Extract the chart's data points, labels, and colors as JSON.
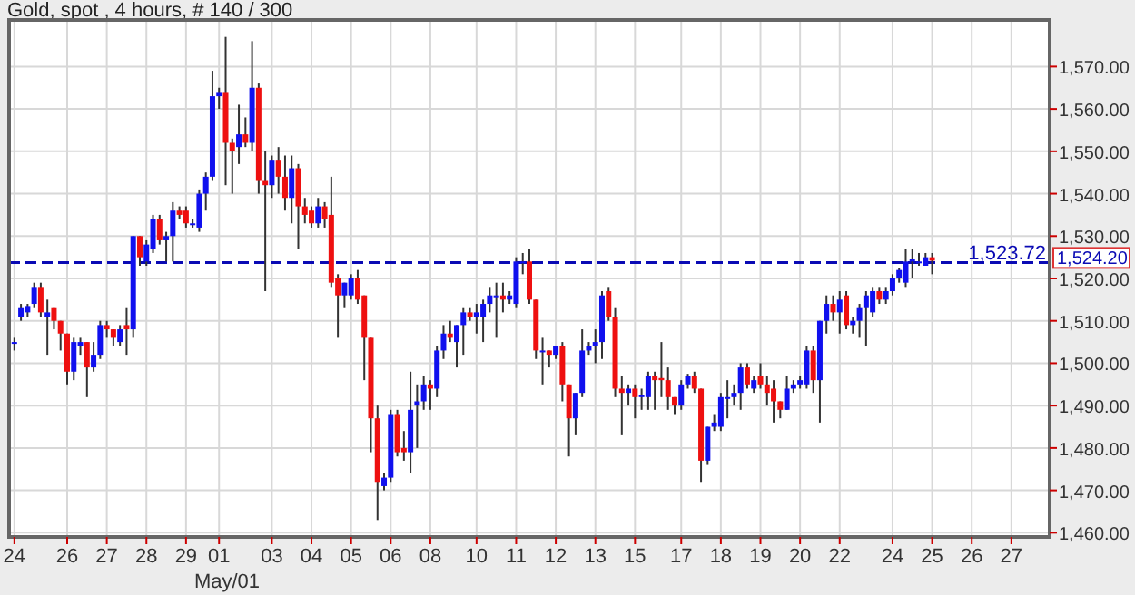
{
  "chart_data": {
    "type": "candlestick",
    "title": "Gold, spot , 4 hours, # 140 / 300",
    "categories": [
      "24",
      null,
      null,
      null,
      null,
      null,
      null,
      null,
      "26",
      null,
      null,
      null,
      null,
      null,
      "27",
      null,
      null,
      null,
      null,
      null,
      "28",
      null,
      null,
      null,
      null,
      null,
      "29",
      null,
      null,
      null,
      null,
      "01",
      null,
      null,
      null,
      null,
      null,
      null,
      null,
      "03",
      null,
      null,
      null,
      null,
      null,
      "04",
      null,
      null,
      null,
      null,
      null,
      "05",
      null,
      null,
      null,
      null,
      null,
      "06",
      null,
      null,
      null,
      null,
      null,
      "08",
      null,
      null,
      null,
      null,
      null,
      null,
      "10",
      null,
      null,
      null,
      null,
      null,
      "11",
      null,
      null,
      null,
      null,
      null,
      "12",
      null,
      null,
      null,
      null,
      null,
      "13",
      null,
      null,
      null,
      null,
      null,
      "15",
      null,
      null,
      null,
      null,
      null,
      null,
      "17",
      null,
      null,
      null,
      null,
      null,
      "18",
      null,
      null,
      null,
      null,
      null,
      "19",
      null,
      null,
      null,
      null,
      null,
      "20",
      null,
      null,
      null,
      null,
      null,
      "22",
      null,
      null,
      null,
      null,
      null,
      null,
      null,
      "24",
      null,
      null,
      null,
      null,
      null,
      "25",
      null,
      null,
      null,
      null,
      null,
      "26",
      null,
      null,
      null,
      null,
      null,
      "27",
      null,
      null,
      null,
      null,
      null
    ],
    "ohlc": [
      [
        1505,
        1506,
        1503,
        1505
      ],
      [
        1511,
        1514,
        1510,
        1513
      ],
      [
        1512,
        1514,
        1511,
        1513.5
      ],
      [
        1514,
        1519,
        1513,
        1518
      ],
      [
        1518,
        1519,
        1511,
        1512
      ],
      [
        1511,
        1515,
        1502,
        1512
      ],
      [
        1513,
        1513,
        1508,
        1510
      ],
      [
        1510,
        1510,
        1503,
        1507
      ],
      [
        1507,
        1507,
        1495,
        1498
      ],
      [
        1498,
        1506,
        1496,
        1505
      ],
      [
        1504,
        1506,
        1502,
        1505
      ],
      [
        1505,
        1505,
        1492,
        1499
      ],
      [
        1499,
        1505,
        1498,
        1502
      ],
      [
        1502,
        1510,
        1501,
        1509
      ],
      [
        1509,
        1510,
        1506,
        1508
      ],
      [
        1508,
        1508,
        1504,
        1506
      ],
      [
        1505,
        1509,
        1504,
        1508
      ],
      [
        1509,
        1513,
        1502,
        1508
      ],
      [
        1508,
        1530,
        1506,
        1530
      ],
      [
        1530,
        1530,
        1523,
        1525
      ],
      [
        1524,
        1529,
        1523,
        1528
      ],
      [
        1527,
        1535,
        1526,
        1534
      ],
      [
        1534,
        1535,
        1528,
        1529
      ],
      [
        1529,
        1531,
        1524,
        1530
      ],
      [
        1530,
        1538,
        1524,
        1536
      ],
      [
        1536,
        1537,
        1534,
        1535
      ],
      [
        1536,
        1537,
        1532,
        1533
      ],
      [
        1533,
        1534,
        1532,
        1533
      ],
      [
        1532,
        1541,
        1531,
        1540
      ],
      [
        1540,
        1545,
        1536,
        1544
      ],
      [
        1544,
        1569,
        1543,
        1563
      ],
      [
        1563,
        1565,
        1560,
        1564
      ],
      [
        1564,
        1577,
        1542,
        1552
      ],
      [
        1552,
        1553,
        1540,
        1550
      ],
      [
        1551,
        1561,
        1547,
        1554
      ],
      [
        1554,
        1558,
        1551,
        1552
      ],
      [
        1552,
        1576,
        1550,
        1565
      ],
      [
        1565,
        1566,
        1540,
        1543
      ],
      [
        1543,
        1550,
        1517,
        1542
      ],
      [
        1542,
        1549,
        1539,
        1548
      ],
      [
        1548,
        1551,
        1540,
        1544
      ],
      [
        1544,
        1549,
        1536,
        1539
      ],
      [
        1539,
        1549,
        1533,
        1546
      ],
      [
        1546,
        1547,
        1527,
        1537
      ],
      [
        1537,
        1539,
        1533,
        1535
      ],
      [
        1536,
        1537,
        1532,
        1533
      ],
      [
        1533,
        1539,
        1532,
        1537
      ],
      [
        1537,
        1538,
        1532,
        1534
      ],
      [
        1535,
        1544,
        1518,
        1519
      ],
      [
        1520,
        1521,
        1506,
        1516
      ],
      [
        1516,
        1519,
        1513,
        1519
      ],
      [
        1516,
        1521,
        1515,
        1520
      ],
      [
        1520,
        1522,
        1514,
        1515
      ],
      [
        1516,
        1516,
        1496,
        1506
      ],
      [
        1506,
        1506,
        1479,
        1487
      ],
      [
        1487,
        1490,
        1463,
        1472
      ],
      [
        1471,
        1474,
        1470,
        1473
      ],
      [
        1473,
        1489,
        1472,
        1488
      ],
      [
        1488,
        1489,
        1478,
        1479
      ],
      [
        1480,
        1484,
        1477,
        1479
      ],
      [
        1479,
        1498,
        1474,
        1489
      ],
      [
        1490,
        1495,
        1480,
        1491
      ],
      [
        1491,
        1497,
        1489,
        1495
      ],
      [
        1495,
        1496,
        1489,
        1494
      ],
      [
        1494,
        1504,
        1492,
        1503
      ],
      [
        1503,
        1509,
        1501,
        1507
      ],
      [
        1507,
        1510,
        1505,
        1506
      ],
      [
        1505,
        1509,
        1499,
        1509
      ],
      [
        1509,
        1513,
        1502,
        1512
      ],
      [
        1512,
        1513,
        1510,
        1511
      ],
      [
        1511,
        1514,
        1507,
        1512
      ],
      [
        1511,
        1515,
        1505,
        1514
      ],
      [
        1514,
        1518,
        1512,
        1516
      ],
      [
        1516,
        1519,
        1506,
        1516
      ],
      [
        1516,
        1519,
        1512,
        1515
      ],
      [
        1515,
        1517,
        1514,
        1516
      ],
      [
        1514,
        1525,
        1513,
        1524
      ],
      [
        1524,
        1526,
        1521,
        1524
      ],
      [
        1524,
        1527,
        1514,
        1515
      ],
      [
        1515,
        1515,
        1501,
        1503
      ],
      [
        1503,
        1506,
        1495,
        1503
      ],
      [
        1503,
        1503,
        1499,
        1502
      ],
      [
        1502,
        1504,
        1501,
        1504
      ],
      [
        1504,
        1505,
        1491,
        1495
      ],
      [
        1495,
        1495,
        1478,
        1487
      ],
      [
        1487,
        1493,
        1483,
        1493
      ],
      [
        1493,
        1508,
        1492,
        1503
      ],
      [
        1503,
        1505,
        1502,
        1504
      ],
      [
        1504,
        1508,
        1500,
        1505
      ],
      [
        1505,
        1517,
        1501,
        1516
      ],
      [
        1517,
        1518,
        1510,
        1511
      ],
      [
        1511,
        1513,
        1492,
        1494
      ],
      [
        1494,
        1497,
        1483,
        1493
      ],
      [
        1493,
        1495,
        1490,
        1494
      ],
      [
        1494,
        1495,
        1487,
        1492
      ],
      [
        1492,
        1494,
        1489,
        1492.5
      ],
      [
        1492,
        1498,
        1489,
        1497
      ],
      [
        1497,
        1498,
        1489,
        1496
      ],
      [
        1496.5,
        1505,
        1492,
        1496
      ],
      [
        1496,
        1499,
        1489,
        1492
      ],
      [
        1492,
        1492,
        1488,
        1490
      ],
      [
        1490,
        1496,
        1489,
        1495
      ],
      [
        1495,
        1497.5,
        1494,
        1497
      ],
      [
        1497,
        1498,
        1493,
        1494
      ],
      [
        1494,
        1494,
        1472,
        1477
      ],
      [
        1477,
        1485,
        1476,
        1485
      ],
      [
        1485,
        1488,
        1484,
        1486
      ],
      [
        1485,
        1493,
        1484,
        1492
      ],
      [
        1492,
        1496,
        1487,
        1492
      ],
      [
        1492,
        1495,
        1490,
        1493
      ],
      [
        1493,
        1500,
        1489,
        1499
      ],
      [
        1499,
        1500,
        1494,
        1495
      ],
      [
        1494,
        1497,
        1493,
        1496
      ],
      [
        1497,
        1500,
        1494,
        1495
      ],
      [
        1495,
        1497,
        1490,
        1493
      ],
      [
        1494,
        1496,
        1486,
        1491
      ],
      [
        1491,
        1491,
        1487,
        1489
      ],
      [
        1489,
        1497,
        1489,
        1494
      ],
      [
        1494,
        1496,
        1493,
        1495
      ],
      [
        1495,
        1497,
        1494,
        1496
      ],
      [
        1495,
        1504,
        1494,
        1503
      ],
      [
        1503,
        1504,
        1493,
        1496
      ],
      [
        1496,
        1510,
        1486,
        1510
      ],
      [
        1510,
        1516,
        1507,
        1514
      ],
      [
        1514,
        1516,
        1510,
        1512
      ],
      [
        1512,
        1517,
        1507,
        1515
      ],
      [
        1516,
        1517,
        1508,
        1509
      ],
      [
        1509,
        1511,
        1507,
        1510
      ],
      [
        1510,
        1514,
        1506,
        1513
      ],
      [
        1513,
        1517,
        1504,
        1516
      ],
      [
        1512,
        1518,
        1511,
        1517
      ],
      [
        1517,
        1518,
        1514,
        1515
      ],
      [
        1515,
        1518,
        1514,
        1517
      ],
      [
        1517,
        1521,
        1516,
        1520
      ],
      [
        1520,
        1522.5,
        1519,
        1522
      ],
      [
        1519,
        1527,
        1518,
        1524
      ],
      [
        1524,
        1527,
        1520,
        1524.5
      ],
      [
        1524,
        1526,
        1523,
        1524
      ],
      [
        1523,
        1526,
        1523,
        1525
      ],
      [
        1525,
        1526,
        1521,
        1524.2
      ],
      null,
      null,
      null,
      null,
      null,
      null,
      null,
      null,
      null,
      null,
      null,
      null,
      null,
      null,
      null,
      null,
      null
    ],
    "colors": [
      "#1010ee",
      "#1010ee",
      "#1010ee",
      "#1010ee",
      "#ee1010",
      "#1010ee",
      "#ee1010",
      "#ee1010",
      "#ee1010",
      "#1010ee",
      "#1010ee",
      "#ee1010",
      "#1010ee",
      "#1010ee",
      "#ee1010",
      "#ee1010",
      "#1010ee",
      "#ee1010",
      "#1010ee",
      "#ee1010",
      "#1010ee",
      "#1010ee",
      "#ee1010",
      "#1010ee",
      "#1010ee",
      "#ee1010",
      "#ee1010",
      "#1010ee",
      "#1010ee",
      "#1010ee",
      "#1010ee",
      "#1010ee",
      "#ee1010",
      "#ee1010",
      "#1010ee",
      "#ee1010",
      "#1010ee",
      "#ee1010",
      "#ee1010",
      "#1010ee",
      "#ee1010",
      "#ee1010",
      "#1010ee",
      "#ee1010",
      "#ee1010",
      "#ee1010",
      "#1010ee",
      "#ee1010",
      "#ee1010",
      "#ee1010",
      "#1010ee",
      "#1010ee",
      "#ee1010",
      "#ee1010",
      "#ee1010",
      "#ee1010",
      "#1010ee",
      "#1010ee",
      "#ee1010",
      "#ee1010",
      "#1010ee",
      "#1010ee",
      "#1010ee",
      "#ee1010",
      "#1010ee",
      "#1010ee",
      "#ee1010",
      "#1010ee",
      "#1010ee",
      "#ee1010",
      "#1010ee",
      "#1010ee",
      "#1010ee",
      "#1010ee",
      "#ee1010",
      "#1010ee",
      "#1010ee",
      "#1010ee",
      "#ee1010",
      "#ee1010",
      "#1010ee",
      "#ee1010",
      "#1010ee",
      "#ee1010",
      "#ee1010",
      "#1010ee",
      "#1010ee",
      "#1010ee",
      "#1010ee",
      "#1010ee",
      "#ee1010",
      "#ee1010",
      "#ee1010",
      "#1010ee",
      "#ee1010",
      "#1010ee",
      "#1010ee",
      "#ee1010",
      "#ee1010",
      "#ee1010",
      "#ee1010",
      "#1010ee",
      "#1010ee",
      "#ee1010",
      "#ee1010",
      "#1010ee",
      "#1010ee",
      "#1010ee",
      "#1010ee",
      "#1010ee",
      "#1010ee",
      "#ee1010",
      "#1010ee",
      "#ee1010",
      "#ee1010",
      "#ee1010",
      "#ee1010",
      "#1010ee",
      "#1010ee",
      "#1010ee",
      "#1010ee",
      "#ee1010",
      "#1010ee",
      "#1010ee",
      "#ee1010",
      "#1010ee",
      "#ee1010",
      "#1010ee",
      "#1010ee",
      "#1010ee",
      "#1010ee",
      "#ee1010",
      "#1010ee",
      "#1010ee",
      "#1010ee",
      "#1010ee",
      "#1010ee",
      "#1010ee",
      "#1010ee",
      "#ee1010",
      null,
      null,
      null,
      null,
      null,
      null,
      null,
      null,
      null,
      null,
      null,
      null,
      null,
      null,
      null,
      null,
      null
    ],
    "ylim": [
      1459,
      1581
    ],
    "yticks": [
      {
        "value": 1460,
        "label": "1,460.00"
      },
      {
        "value": 1470,
        "label": "1,470.00"
      },
      {
        "value": 1480,
        "label": "1,480.00"
      },
      {
        "value": 1490,
        "label": "1,490.00"
      },
      {
        "value": 1500,
        "label": "1,500.00"
      },
      {
        "value": 1510,
        "label": "1,510.00"
      },
      {
        "value": 1520,
        "label": "1,520.00"
      },
      {
        "value": 1530,
        "label": "1,530.00"
      },
      {
        "value": 1540,
        "label": "1,540.00"
      },
      {
        "value": 1550,
        "label": "1,550.00"
      },
      {
        "value": 1560,
        "label": "1,560.00"
      },
      {
        "value": 1570,
        "label": "1,570.00"
      }
    ],
    "grid": true,
    "ref_lines": [
      {
        "axis": "y",
        "value": 1523.72,
        "label": "1,523.72",
        "color": "#0a0ab4",
        "line_style": "dashed"
      }
    ],
    "annotations": [
      "May/01",
      "1,524.20"
    ]
  }
}
